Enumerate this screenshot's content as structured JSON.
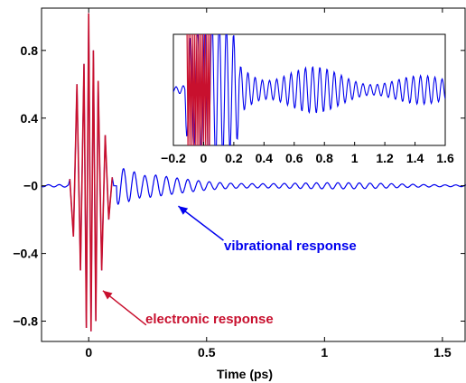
{
  "chart_data": [
    {
      "type": "line",
      "title": "",
      "xlabel": "Time (ps)",
      "ylabel": "",
      "xlim": [
        -0.2,
        1.6
      ],
      "ylim": [
        -0.92,
        1.05
      ],
      "xticks": [
        0,
        0.5,
        1,
        1.5
      ],
      "xtick_labels": [
        "0",
        "0.5",
        "1",
        "1.5"
      ],
      "yticks": [
        0.8,
        0.4,
        0,
        -0.4,
        -0.8
      ],
      "ytick_labels": [
        "0.8",
        "0.4",
        "−0",
        "−0.4",
        "−0.8"
      ],
      "grid": false,
      "colors": {
        "vibrational": "#0000ee",
        "electronic": "#c8102e"
      },
      "series": [
        {
          "role": "vibrational",
          "x": [
            -0.2,
            -0.17,
            -0.15,
            -0.12,
            -0.1,
            -0.08,
            -0.06,
            -0.03,
            0,
            0.03,
            0.06,
            0.08,
            0.1,
            0.12,
            0.14,
            0.16,
            0.18,
            0.2,
            0.22,
            0.25,
            0.3,
            0.35,
            0.4,
            0.5,
            0.6,
            0.7,
            0.8,
            0.9,
            1.0,
            1.1,
            1.2,
            1.3,
            1.4,
            1.5,
            1.6
          ],
          "y": [
            0,
            0.01,
            -0.02,
            0.04,
            -0.05,
            0.05,
            0.6,
            -0.8,
            1.02,
            -0.85,
            0.55,
            -0.35,
            0.1,
            -0.06,
            0.09,
            -0.05,
            0.12,
            -0.06,
            0.06,
            -0.04,
            0.05,
            -0.03,
            0.04,
            -0.03,
            0.03,
            -0.02,
            0.03,
            -0.02,
            0.02,
            -0.01,
            0.02,
            -0.01,
            0.01,
            -0.01,
            0.01
          ]
        },
        {
          "role": "electronic",
          "x": [
            -0.08,
            -0.065,
            -0.05,
            -0.035,
            -0.02,
            -0.01,
            0,
            0.01,
            0.02,
            0.03,
            0.04,
            0.055,
            0.07,
            0.085,
            0.1
          ],
          "y": [
            0.04,
            -0.3,
            0.6,
            -0.5,
            0.72,
            -0.84,
            1.02,
            -0.86,
            0.8,
            -0.8,
            0.62,
            -0.5,
            0.3,
            -0.2,
            0.05
          ]
        }
      ],
      "annotations": [
        {
          "text": "vibrational response",
          "color": "#0000ee",
          "point": [
            0.38,
            -0.12
          ]
        },
        {
          "text": "electronic response",
          "color": "#c8102e",
          "point": [
            0.06,
            -0.62
          ]
        }
      ]
    },
    {
      "type": "line",
      "title": "",
      "xlabel": "",
      "ylabel": "",
      "xlim": [
        -0.2,
        1.6
      ],
      "ylim": [
        -1,
        1
      ],
      "xticks": [
        -0.2,
        0,
        0.2,
        0.4,
        0.6,
        0.8,
        1,
        1.2,
        1.4,
        1.6
      ],
      "xtick_labels": [
        "−0.2",
        "0",
        "0.2",
        "0.4",
        "0.6",
        "0.8",
        "1",
        "1.2",
        "1.4",
        "1.6"
      ],
      "yticks": [],
      "grid": false,
      "series": [
        {
          "role": "vibrational",
          "note_zoom": "y-magnified view of the same trace"
        },
        {
          "role": "electronic"
        }
      ]
    }
  ]
}
